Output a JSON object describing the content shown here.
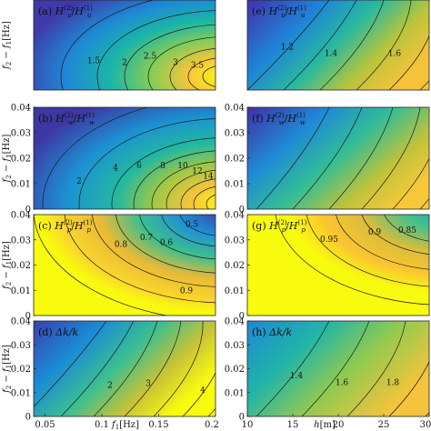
{
  "chart_data": [
    {
      "id": "a",
      "type": "heatmap",
      "title": "(a) H_u^(2)/H_u^(1)",
      "label_parts": [
        "(a)",
        "H",
        "(2)",
        "u",
        "/",
        "H",
        "(1)",
        "u"
      ],
      "x_var": "f1",
      "xlim": [
        0.04,
        0.2
      ],
      "y_var": "f2 - f1",
      "ylim": [
        0,
        0.04
      ],
      "xticks": [],
      "yticks": [],
      "contour_labels": [
        "1.5",
        "2",
        "2.5",
        "3",
        "3.5"
      ],
      "colorscale": "parula"
    },
    {
      "id": "b",
      "type": "heatmap",
      "title": "(b) H_w^(2)/H_w^(1)",
      "label_parts": [
        "(b)",
        "H",
        "(2)",
        "w",
        "/",
        "H",
        "(1)",
        "w"
      ],
      "x_var": "f1",
      "xlim": [
        0.04,
        0.2
      ],
      "y_var": "f2 - f1",
      "ylim": [
        0,
        0.04
      ],
      "xticks": [],
      "yticks": [
        "0",
        "0.01",
        "0.02",
        "0.03",
        "0.04"
      ],
      "contour_labels": [
        "2",
        "4",
        "6",
        "8",
        "10",
        "12",
        "14"
      ],
      "colorscale": "parula"
    },
    {
      "id": "c",
      "type": "heatmap",
      "title": "(c) H_p^(2)/H_p^(1)",
      "label_parts": [
        "(c)",
        "H",
        "(2)",
        "p",
        "/",
        "H",
        "(1)",
        "p"
      ],
      "x_var": "f1",
      "xlim": [
        0.04,
        0.2
      ],
      "y_var": "f2 - f1",
      "ylim": [
        0,
        0.04
      ],
      "xticks": [],
      "yticks": [
        "0",
        "0.01",
        "0.02",
        "0.03",
        "0.04"
      ],
      "contour_labels": [
        "0.5",
        "0.6",
        "0.7",
        "0.8",
        "0.9"
      ],
      "colorscale": "parula"
    },
    {
      "id": "d",
      "type": "heatmap",
      "title": "(d) Δk/k",
      "label_parts": [
        "(d)",
        "Δk/k"
      ],
      "x_var": "f1",
      "xlim": [
        0.04,
        0.2
      ],
      "y_var": "f2 - f1",
      "ylim": [
        0,
        0.04
      ],
      "xticks": [
        "0.05",
        "0.1",
        "0.15",
        "0.2"
      ],
      "yticks": [
        "0",
        "0.01",
        "0.02",
        "0.03",
        "0.04"
      ],
      "contour_labels": [
        "2",
        "3",
        "4"
      ],
      "colorscale": "parula"
    },
    {
      "id": "e",
      "type": "heatmap",
      "title": "(e) H_u^(2)/H_u^(1)",
      "label_parts": [
        "(e)",
        "H",
        "(2)",
        "u",
        "/",
        "H",
        "(1)",
        "u"
      ],
      "x_var": "h",
      "xlim": [
        10,
        30
      ],
      "y_var": "f2 - f1",
      "ylim": [
        0,
        0.04
      ],
      "xticks": [],
      "yticks": [],
      "contour_labels": [
        "1.2",
        "1.4",
        "1.6"
      ],
      "colorscale": "parula"
    },
    {
      "id": "f",
      "type": "heatmap",
      "title": "(f) H_w^(2)/H_w^(1)",
      "label_parts": [
        "(f)",
        "H",
        "(2)",
        "w",
        "/",
        "H",
        "(1)",
        "w"
      ],
      "x_var": "h",
      "xlim": [
        10,
        30
      ],
      "y_var": "f2 - f1",
      "ylim": [
        0,
        0.04
      ],
      "xticks": [],
      "yticks": [
        "0",
        "0.01",
        "0.02",
        "0.03",
        "0.04"
      ],
      "contour_labels": [],
      "colorscale": "parula"
    },
    {
      "id": "g",
      "type": "heatmap",
      "title": "(g) H_p^(2)/H_p^(1)",
      "label_parts": [
        "(g)",
        "H",
        "(2)",
        "p",
        "/",
        "H",
        "(1)",
        "p"
      ],
      "x_var": "h",
      "xlim": [
        10,
        30
      ],
      "y_var": "f2 - f1",
      "ylim": [
        0,
        0.04
      ],
      "xticks": [],
      "yticks": [
        "0",
        "0.01",
        "0.02",
        "0.03",
        "0.04"
      ],
      "contour_labels": [
        "0.85",
        "0.9",
        "0.95"
      ],
      "colorscale": "parula"
    },
    {
      "id": "h",
      "type": "heatmap",
      "title": "(h) Δk/k",
      "label_parts": [
        "(h)",
        "Δk/k"
      ],
      "x_var": "h",
      "xlim": [
        10,
        30
      ],
      "y_var": "f2 - f1",
      "ylim": [
        0,
        0.04
      ],
      "xticks": [
        "10",
        "15",
        "20",
        "25",
        "30"
      ],
      "yticks": [
        "0",
        "0.01",
        "0.02",
        "0.03",
        "0.04"
      ],
      "contour_labels": [
        "1.4",
        "1.6",
        "1.8"
      ],
      "colorscale": "parula"
    }
  ],
  "axes_text": {
    "ylabel_main": "f",
    "ylabel_sub2": "2",
    "ylabel_minus": " − ",
    "ylabel_sub1": "1",
    "ylabel_unit": "[Hz]",
    "xlabel_left_main": "f",
    "xlabel_left_sub": "1",
    "xlabel_left_unit": "[Hz]",
    "xlabel_right_main": "h",
    "xlabel_right_unit": "[m]"
  }
}
